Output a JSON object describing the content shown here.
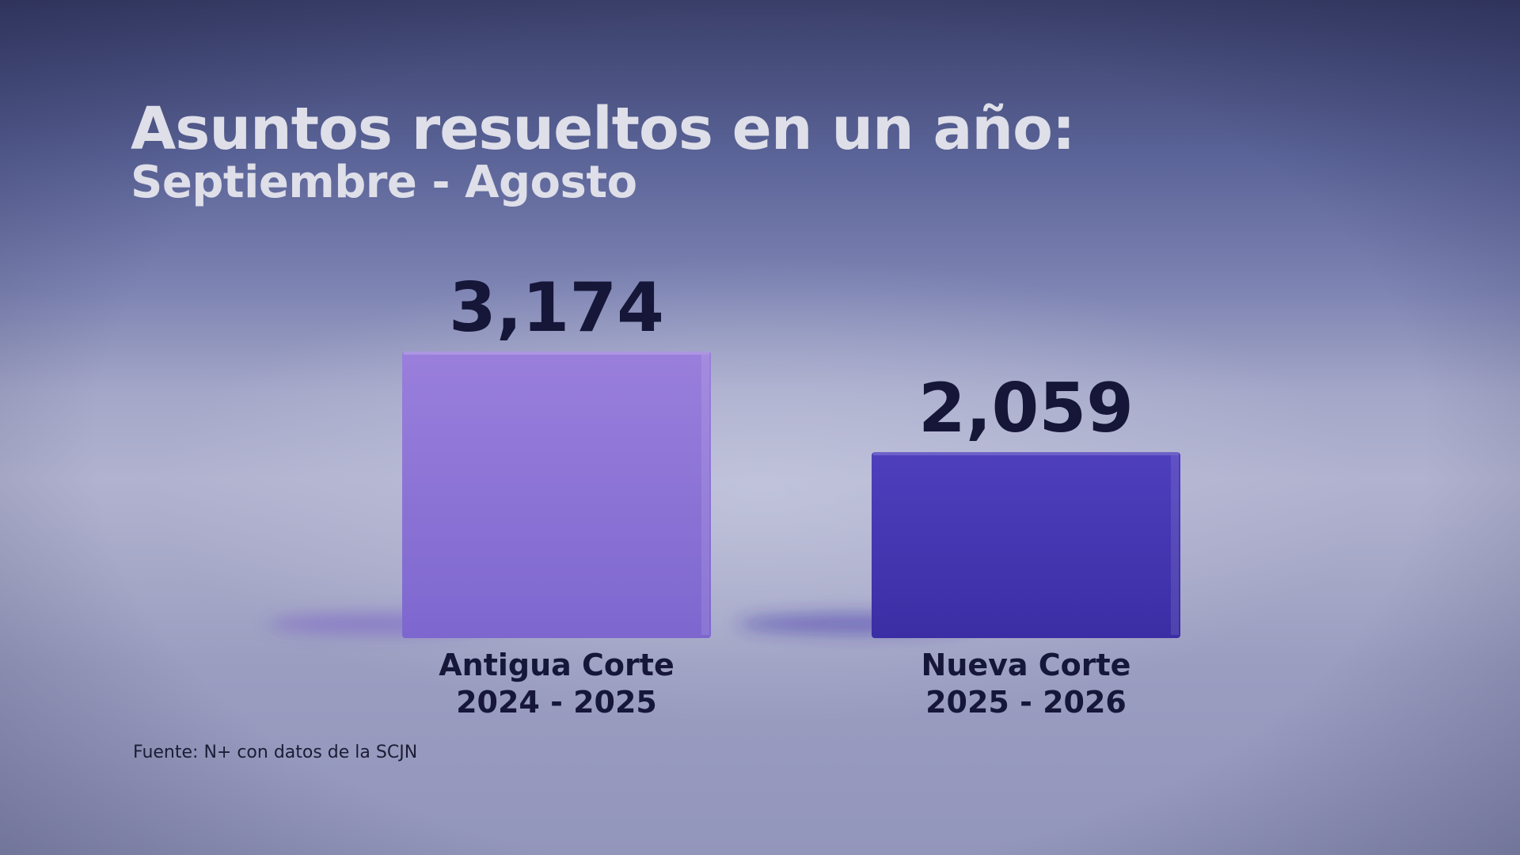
{
  "header": {
    "title": "Asuntos resueltos en un año:",
    "subtitle": "Septiembre - Agosto"
  },
  "footer": {
    "source": "Fuente: N+ con datos de la SCJN"
  },
  "colors": {
    "bar_1": "#8a6fd6",
    "bar_2": "#4536b0",
    "value_text": "#151638",
    "label_text": "#151638",
    "title_text": "#dedfe8"
  },
  "chart_data": {
    "type": "bar",
    "title": "Asuntos resueltos en un año:",
    "subtitle": "Septiembre - Agosto",
    "categories": [
      [
        "Antigua Corte",
        "2024 - 2025"
      ],
      [
        "Nueva Corte",
        "2025 - 2026"
      ]
    ],
    "values": [
      3174,
      2059
    ],
    "value_labels": [
      "3,174",
      "2,059"
    ],
    "xlabel": "",
    "ylabel": "",
    "ylim": [
      0,
      3174
    ],
    "grid": false,
    "legend": "none"
  }
}
